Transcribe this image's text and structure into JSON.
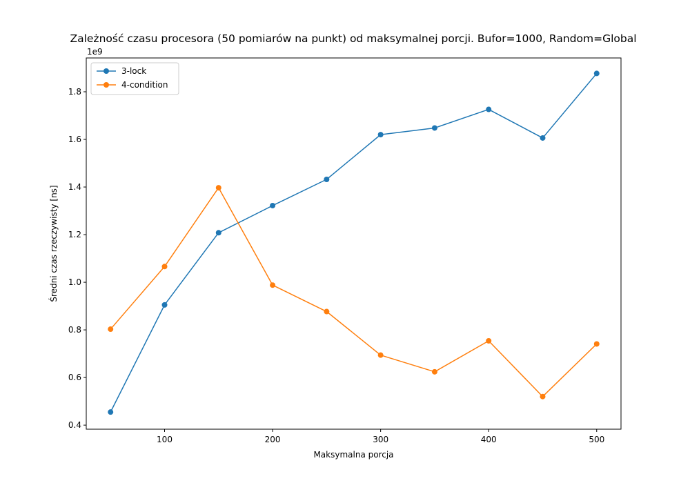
{
  "chart_data": {
    "type": "line",
    "title": "Zależność czasu procesora (50 pomiarów na punkt) od maksymalnej porcji. Bufor=1000, Random=Global",
    "xlabel": "Maksymalna porcja",
    "ylabel": "Średni czas rzeczywisty [ns]",
    "y_offset_label": "1e9",
    "x": [
      50,
      100,
      150,
      200,
      250,
      300,
      350,
      400,
      450,
      500
    ],
    "xlim": [
      27.5,
      522.5
    ],
    "ylim": [
      0.383,
      1.942
    ],
    "y_scale_factor": 1000000000,
    "x_ticks": [
      100,
      200,
      300,
      400,
      500
    ],
    "y_ticks": [
      0.4,
      0.6,
      0.8,
      1.0,
      1.2,
      1.4,
      1.6,
      1.8
    ],
    "y_tick_labels": [
      "0.4",
      "0.6",
      "0.8",
      "1.0",
      "1.2",
      "1.4",
      "1.6",
      "1.8"
    ],
    "grid": false,
    "legend_position": "top-left",
    "series": [
      {
        "name": "3-lock",
        "color": "#1f77b4",
        "values": [
          0.455,
          0.905,
          1.208,
          1.322,
          1.432,
          1.62,
          1.648,
          1.726,
          1.606,
          1.877
        ]
      },
      {
        "name": "4-condition",
        "color": "#ff7f0e",
        "values": [
          0.803,
          1.066,
          1.397,
          0.988,
          0.877,
          0.694,
          0.624,
          0.754,
          0.52,
          0.741
        ]
      }
    ]
  }
}
